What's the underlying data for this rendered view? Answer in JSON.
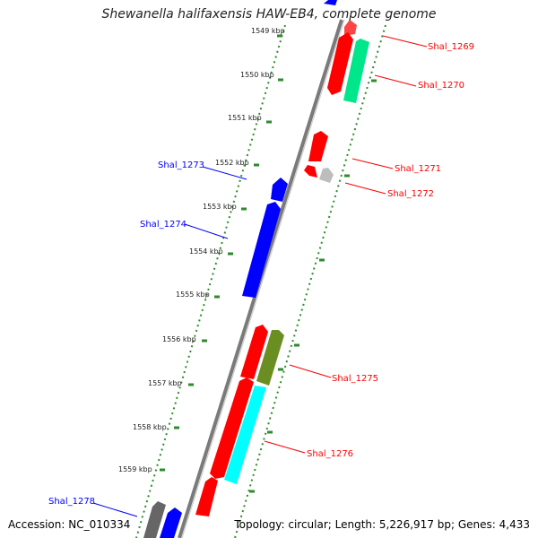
{
  "title": "Shewanella halifaxensis HAW-EB4, complete genome",
  "accession": "Accession: NC_010334",
  "topology": "Topology: circular; Length: 5,226,917 bp; Genes: 4,433",
  "colors": {
    "forward_gene": "#0000ff",
    "reverse_gene": "#ff0000",
    "gray_feature": "#bdbdbd",
    "dark_gray_feature": "#666666",
    "spring_green": "#00e68a",
    "olive": "#6b8e23",
    "cyan": "#00ffff",
    "tick_green": "#2e8b2e",
    "backbone": "#7a7a7a"
  },
  "kbp_labels": [
    "1549 kbp",
    "1550 kbp",
    "1551 kbp",
    "1552 kbp",
    "1553 kbp",
    "1554 kbp",
    "1555 kbp",
    "1556 kbp",
    "1557 kbp",
    "1558 kbp",
    "1559 kbp"
  ],
  "gene_labels": [
    {
      "text": "Shal_1269",
      "color": "red"
    },
    {
      "text": "Shal_1270",
      "color": "red"
    },
    {
      "text": "Shal_1271",
      "color": "red"
    },
    {
      "text": "Shal_1272",
      "color": "red"
    },
    {
      "text": "Shal_1273",
      "color": "blue"
    },
    {
      "text": "Shal_1274",
      "color": "blue"
    },
    {
      "text": "Shal_1275",
      "color": "red"
    },
    {
      "text": "Shal_1276",
      "color": "red"
    },
    {
      "text": "Shal_1278",
      "color": "blue"
    }
  ]
}
